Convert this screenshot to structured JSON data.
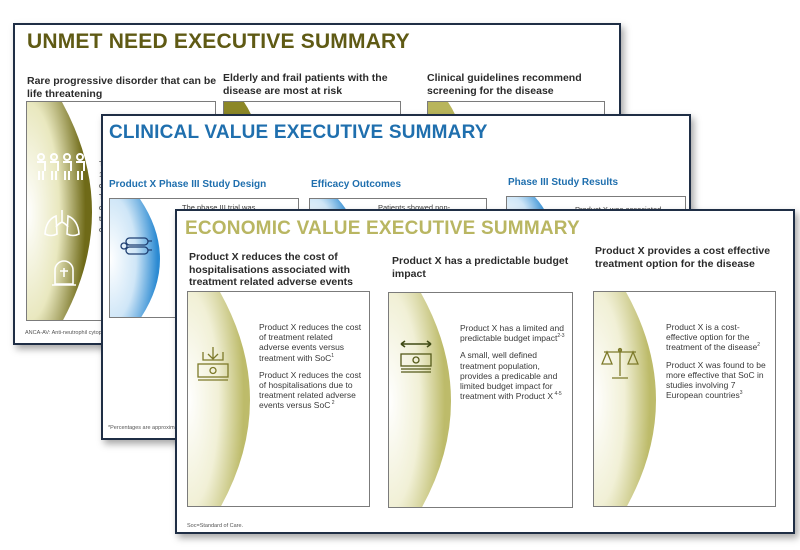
{
  "colors": {
    "border": "#1f2e45",
    "olive": "#5f5a14",
    "blue": "#1f6fae",
    "khaki": "#b9b662",
    "card_border": "#7b7b7b"
  },
  "unmet": {
    "title": "UNMET NEED EXECUTIVE SUMMARY",
    "columns": [
      {
        "heading": "Rare progressive disorder that can be life threatening"
      },
      {
        "heading": "Elderly and frail patients with the disease are most at risk"
      },
      {
        "heading": "Clinical guidelines recommend screening for the disease"
      }
    ],
    "card_fragment": {
      "lines": [
        "Th",
        "1:",
        "d:",
        "Th",
        "di",
        "th",
        "ca"
      ]
    },
    "footnote": "ANCA-AV: Anti-neutrophil cytop"
  },
  "clinical": {
    "title": "CLINICAL VALUE EXECUTIVE SUMMARY",
    "columns": [
      {
        "heading": "Product X  Phase III Study Design",
        "fragment": "The phase III trial was"
      },
      {
        "heading": "Efficacy Outcomes",
        "fragment": "Patients   showed non-"
      },
      {
        "heading": "Phase III Study Results",
        "fragment": "Product X was associated"
      }
    ],
    "footnote": "*Percentages are approximate"
  },
  "economic": {
    "title": "ECONOMIC VALUE EXECUTIVE SUMMARY",
    "columns": [
      {
        "heading": "Product X reduces the cost of hospitalisations associated with treatment related adverse events",
        "p1": "Product X reduces the cost of treatment related adverse events versus treatment with SoC",
        "p1_sup": "1",
        "p2": "Product X reduces the cost of hospitalisations due to treatment related adverse events versus SoC",
        "p2_sup": " 2"
      },
      {
        "heading": "Product X has a predictable budget impact",
        "p1": "Product X has a limited and predictable budget impact",
        "p1_sup": "2-3",
        "p2": "A small, well defined treatment population, provides a predicable and limited budget impact for treatment with Product X",
        "p2_sup": " 4-5"
      },
      {
        "heading": "Product X provides a cost effective treatment option for the disease",
        "p1": "Product X is a cost-effective option for the treatment of the disease",
        "p1_sup": "2",
        "p2": "Product X was found to be more effective that SoC  in studies involving 7 European countries",
        "p2_sup": "3"
      }
    ],
    "footnote": "Soc=Standard of Care.",
    "icons": [
      "money-down-icon",
      "money-budget-icon",
      "balance-scale-icon"
    ]
  }
}
